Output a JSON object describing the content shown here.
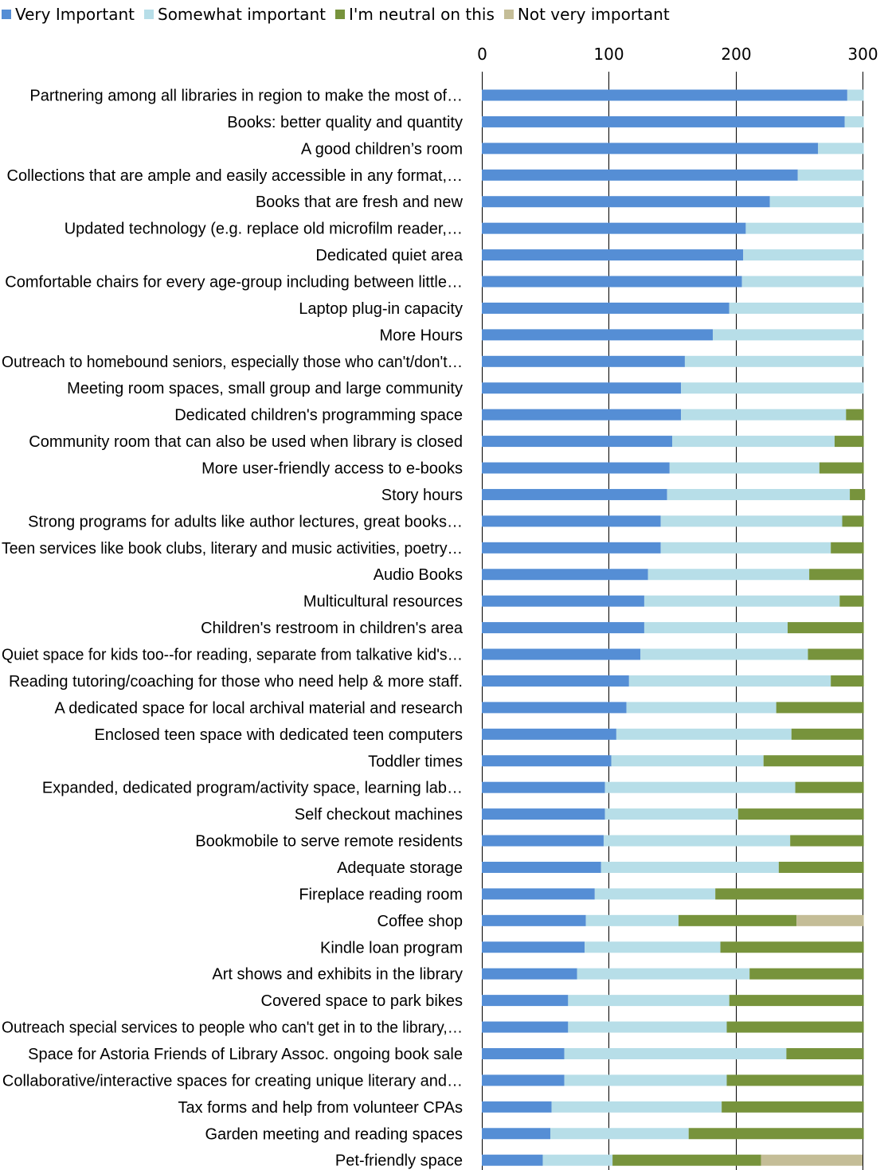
{
  "chart_data": {
    "type": "bar",
    "orientation": "horizontal",
    "stacked": true,
    "title": "",
    "xlabel": "",
    "ylabel": "",
    "xlim": [
      0,
      300
    ],
    "x_ticks": [
      "0",
      "100",
      "200",
      "300"
    ],
    "x_axis_position": "top",
    "grid": true,
    "legend_position": "top-left",
    "categories": [
      "Partnering among all libraries in region to make the most of…",
      "Books: better quality and quantity",
      "A good children’s room",
      "Collections that are ample and easily accessible in any format,…",
      "Books that are fresh and new",
      "Updated technology (e.g. replace old microfilm reader,…",
      "Dedicated quiet area",
      "Comfortable chairs for every age-group including between little…",
      "Laptop plug-in capacity",
      "More Hours",
      "Outreach to homebound seniors, especially those who can't/don't…",
      "Meeting room spaces, small group and large community",
      "Dedicated children's programming space",
      "Community room that can also be used when library is closed",
      "More user-friendly access to e-books",
      "Story hours",
      "Strong programs for adults like author lectures, great books…",
      "Teen services like book clubs, literary and music activities, poetry…",
      "Audio Books",
      "Multicultural resources",
      "Children's restroom in children's area",
      "Quiet space for kids too--for reading, separate from talkative kid's…",
      "Reading tutoring/coaching for those who need help & more staff.",
      "A dedicated space for local archival material and research",
      "Enclosed teen space with dedicated teen computers",
      "Toddler times",
      "Expanded, dedicated program/activity space, learning lab…",
      "Self checkout machines",
      "Bookmobile to serve remote residents",
      "Adequate storage",
      "Fireplace reading room",
      "Coffee shop",
      "Kindle loan program",
      "Art shows and exhibits in the library",
      "Covered space to park bikes",
      "Outreach special services to people who can't get in to the library,…",
      "Space for Astoria Friends of Library Assoc. ongoing book sale",
      "Collaborative/interactive spaces for creating unique literary and…",
      "Tax forms and help from volunteer CPAs",
      "Garden meeting and reading spaces",
      "Pet-friendly space"
    ],
    "series": [
      {
        "name": "Very Important",
        "color": "#558ed5",
        "values": [
          288,
          286,
          265,
          249,
          227,
          208,
          206,
          205,
          195,
          182,
          160,
          157,
          157,
          150,
          148,
          146,
          141,
          141,
          131,
          128,
          128,
          125,
          116,
          114,
          106,
          102,
          97,
          97,
          96,
          94,
          89,
          82,
          81,
          75,
          68,
          68,
          65,
          65,
          55,
          54,
          48
        ]
      },
      {
        "name": "Somewhat important",
        "color": "#b7dee8",
        "values": [
          13,
          15,
          36,
          52,
          74,
          93,
          95,
          96,
          106,
          119,
          141,
          144,
          130,
          128,
          118,
          144,
          143,
          134,
          127,
          154,
          113,
          132,
          159,
          118,
          138,
          120,
          150,
          105,
          147,
          140,
          95,
          73,
          107,
          136,
          127,
          125,
          175,
          128,
          134,
          109,
          55
        ]
      },
      {
        "name": "I'm neutral on this",
        "color": "#77933c",
        "values": [
          0,
          0,
          0,
          0,
          0,
          0,
          0,
          0,
          0,
          0,
          0,
          0,
          14,
          23,
          35,
          12,
          17,
          26,
          43,
          19,
          60,
          44,
          26,
          69,
          57,
          79,
          54,
          99,
          58,
          67,
          117,
          93,
          113,
          90,
          106,
          108,
          61,
          108,
          112,
          138,
          117
        ]
      },
      {
        "name": "Not very important",
        "color": "#c4bd97",
        "values": [
          0,
          0,
          0,
          0,
          0,
          0,
          0,
          0,
          0,
          0,
          0,
          0,
          0,
          0,
          0,
          0,
          0,
          0,
          0,
          0,
          0,
          0,
          0,
          0,
          0,
          0,
          0,
          0,
          0,
          0,
          0,
          53,
          0,
          0,
          0,
          0,
          0,
          0,
          0,
          0,
          80
        ]
      }
    ]
  }
}
